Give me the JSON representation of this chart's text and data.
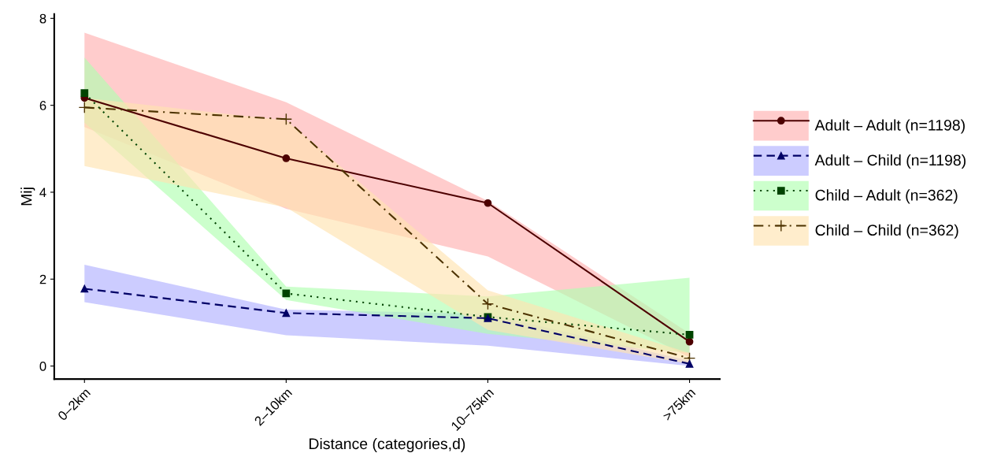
{
  "chart_data": {
    "type": "line",
    "xlabel": "Distance (categories,d)",
    "ylabel": "Mij",
    "categories": [
      "0–2km",
      "2–10km",
      "10–75km",
      ">75km"
    ],
    "ylim": [
      -0.3,
      8.1
    ],
    "yticks": [
      0,
      2,
      4,
      6,
      8
    ],
    "grid": false,
    "legend": "right",
    "series": [
      {
        "name": "Adult – Adult (n=1198)",
        "color": "#4d0000",
        "marker": "circle",
        "line_style": "solid",
        "values": [
          6.17,
          4.78,
          3.75,
          0.56
        ],
        "lower": [
          5.5,
          3.62,
          2.52,
          0.2
        ],
        "upper": [
          7.67,
          6.07,
          3.8,
          0.75
        ]
      },
      {
        "name": "Adult – Child (n=1198)",
        "color": "#000066",
        "marker": "triangle",
        "line_style": "dashed",
        "values": [
          1.78,
          1.22,
          1.1,
          0.05
        ],
        "lower": [
          1.47,
          0.71,
          0.47,
          0.0
        ],
        "upper": [
          2.33,
          1.3,
          1.2,
          0.12
        ]
      },
      {
        "name": "Child – Adult (n=362)",
        "color": "#004400",
        "marker": "square",
        "line_style": "dotted",
        "values": [
          6.28,
          1.67,
          1.13,
          0.72
        ],
        "lower": [
          5.6,
          1.52,
          0.74,
          0.3
        ],
        "upper": [
          7.1,
          1.83,
          1.6,
          2.03
        ]
      },
      {
        "name": "Child – Child (n=362)",
        "color": "#4d3300",
        "marker": "cross",
        "line_style": "dashdot",
        "values": [
          5.95,
          5.68,
          1.43,
          0.18
        ],
        "lower": [
          4.6,
          3.65,
          0.83,
          0.05
        ],
        "upper": [
          6.17,
          5.65,
          1.74,
          0.3
        ]
      }
    ]
  }
}
